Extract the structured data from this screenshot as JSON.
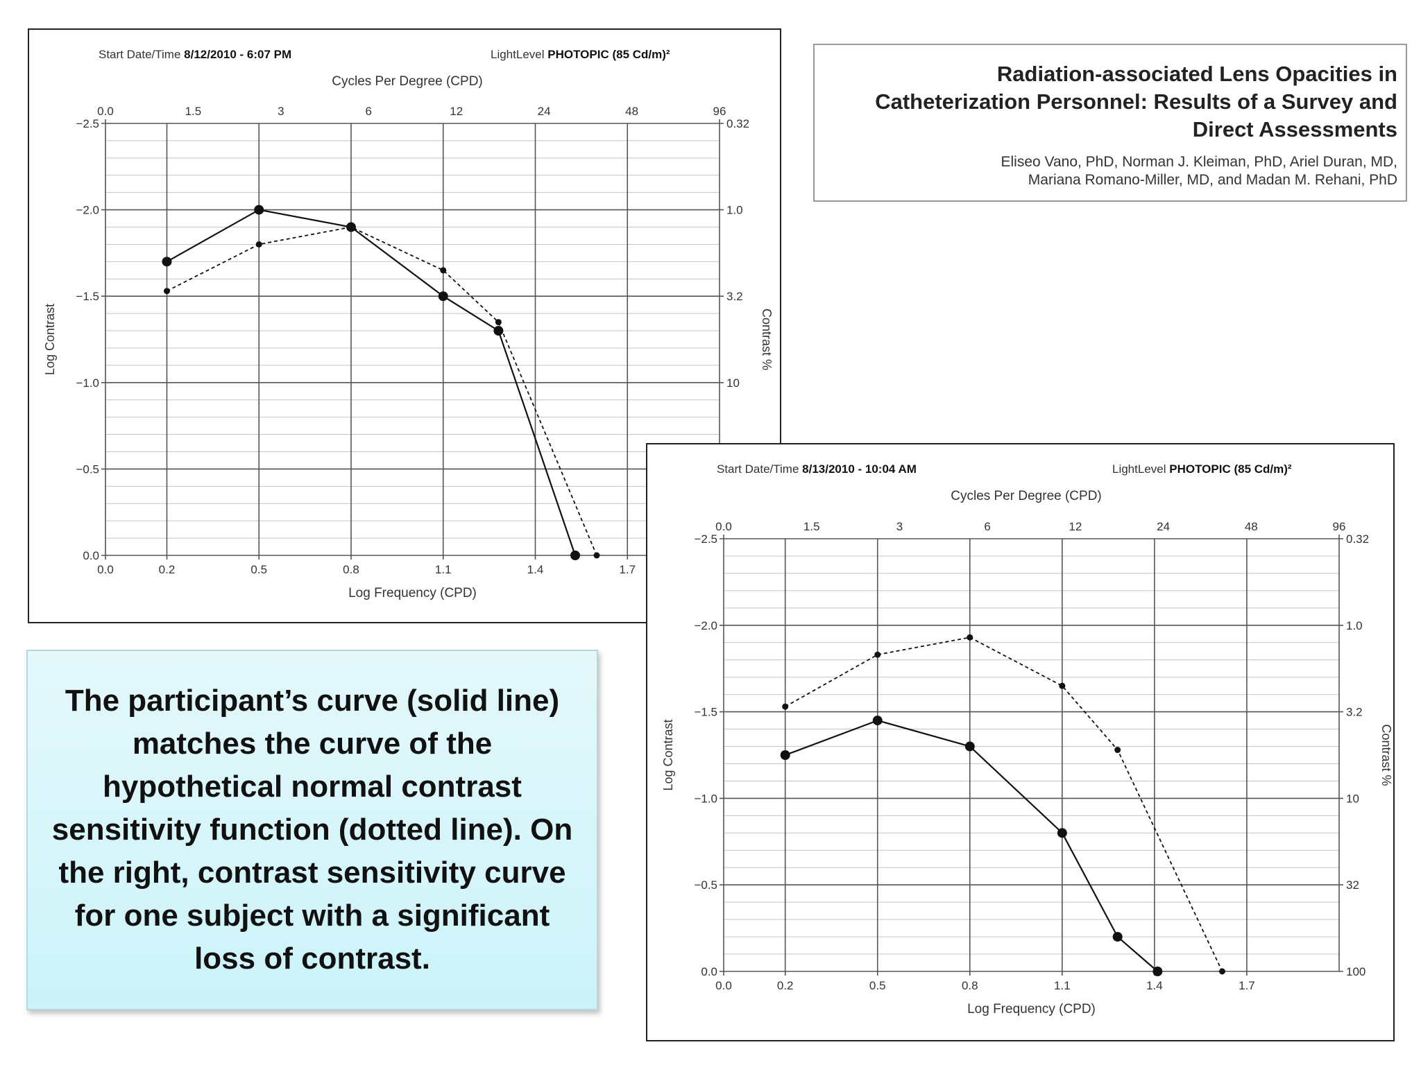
{
  "paper": {
    "title_lines": [
      "Radiation-associated Lens Opacities in",
      "Catheterization Personnel: Results of a Survey and",
      "Direct Assessments"
    ],
    "author_lines": [
      "Eliseo Vano, PhD, Norman J. Kleiman, PhD, Ariel Duran, MD,",
      "Mariana Romano-Miller, MD, and Madan M. Rehani, PhD"
    ]
  },
  "caption": "The participant’s curve (solid line) matches the curve of the hypothetical normal contrast sensitivity function (dotted line). On the right, contrast sensitivity curve for one subject with a significant loss of contrast.",
  "colors": {
    "line": "#111111",
    "grid": "#c4c4c4",
    "major": "#555555",
    "caption_bg": "#cdf4f9"
  },
  "chart_data": [
    {
      "type": "line",
      "header_left_label": "Start Date/Time",
      "header_left_value": "8/12/2010 - 6:07 PM",
      "header_right_label": "LightLevel",
      "header_right_value": "PHOTOPIC (85 Cd/m)²",
      "top_title": "Cycles Per Degree (CPD)",
      "xlabel": "Log Frequency (CPD)",
      "ylabel": "Log Contrast",
      "y2label": "Contrast %",
      "xlim": [
        0.0,
        2.0
      ],
      "ylim": [
        0.0,
        -2.5
      ],
      "x_ticks": [
        "0.0",
        "0.2",
        "0.5",
        "0.8",
        "1.1",
        "1.4",
        "1.7"
      ],
      "x_tick_values": [
        0.0,
        0.2,
        0.5,
        0.8,
        1.1,
        1.4,
        1.7
      ],
      "top_ticks": [
        "0.0",
        "1.5",
        "3",
        "6",
        "12",
        "24",
        "48",
        "96"
      ],
      "y_ticks": [
        "0.0",
        "−0.5",
        "−1.0",
        "−1.5",
        "−2.0",
        "−2.5"
      ],
      "y_tick_values": [
        0.0,
        -0.5,
        -1.0,
        -1.5,
        -2.0,
        -2.5
      ],
      "y2_ticks": [
        "0.32",
        "1.0",
        "3.2",
        "10"
      ],
      "y2_tick_values": [
        -2.5,
        -2.0,
        -1.5,
        -1.0
      ],
      "grid": true,
      "series": [
        {
          "style": "solid",
          "x": [
            0.2,
            0.5,
            0.8,
            1.1,
            1.28,
            1.53
          ],
          "y": [
            -1.7,
            -2.0,
            -1.9,
            -1.5,
            -1.3,
            0.0
          ]
        },
        {
          "style": "dotted",
          "x": [
            0.2,
            0.5,
            0.8,
            1.1,
            1.28,
            1.6
          ],
          "y": [
            -1.53,
            -1.8,
            -1.9,
            -1.65,
            -1.35,
            0.0
          ]
        }
      ]
    },
    {
      "type": "line",
      "header_left_label": "Start Date/Time",
      "header_left_value": "8/13/2010 - 10:04 AM",
      "header_right_label": "LightLevel",
      "header_right_value": "PHOTOPIC (85 Cd/m)²",
      "top_title": "Cycles Per Degree (CPD)",
      "xlabel": "Log Frequency (CPD)",
      "ylabel": "Log Contrast",
      "y2label": "Contrast %",
      "xlim": [
        0.0,
        2.0
      ],
      "ylim": [
        0.0,
        -2.5
      ],
      "x_ticks": [
        "0.0",
        "0.2",
        "0.5",
        "0.8",
        "1.1",
        "1.4",
        "1.7"
      ],
      "x_tick_values": [
        0.0,
        0.2,
        0.5,
        0.8,
        1.1,
        1.4,
        1.7
      ],
      "top_ticks": [
        "0.0",
        "1.5",
        "3",
        "6",
        "12",
        "24",
        "48",
        "96"
      ],
      "y_ticks": [
        "0.0",
        "−0.5",
        "−1.0",
        "−1.5",
        "−2.0",
        "−2.5"
      ],
      "y_tick_values": [
        0.0,
        -0.5,
        -1.0,
        -1.5,
        -2.0,
        -2.5
      ],
      "y2_ticks": [
        "100",
        "32",
        "10",
        "3.2",
        "1.0",
        "0.32"
      ],
      "y2_tick_values": [
        0.0,
        -0.5,
        -1.0,
        -1.5,
        -2.0,
        -2.5
      ],
      "grid": true,
      "series": [
        {
          "style": "solid",
          "x": [
            0.2,
            0.5,
            0.8,
            1.1,
            1.28,
            1.41
          ],
          "y": [
            -1.25,
            -1.45,
            -1.3,
            -0.8,
            -0.2,
            0.0
          ]
        },
        {
          "style": "dotted",
          "x": [
            0.2,
            0.5,
            0.8,
            1.1,
            1.28,
            1.62
          ],
          "y": [
            -1.53,
            -1.83,
            -1.93,
            -1.65,
            -1.28,
            0.0
          ]
        }
      ]
    }
  ]
}
